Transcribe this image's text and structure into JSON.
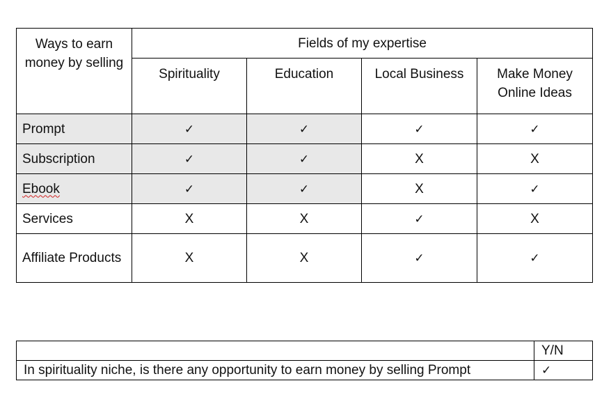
{
  "main_table": {
    "corner_label": "Ways to earn money by selling",
    "group_header": "Fields of my expertise",
    "columns": [
      "Spirituality",
      "Education",
      "Local Business",
      "Make Money Online Ideas"
    ],
    "rows": [
      {
        "label": "Prompt",
        "values": [
          "✓",
          "✓",
          "✓",
          "✓"
        ]
      },
      {
        "label": "Subscription",
        "values": [
          "✓",
          "✓",
          "X",
          "X"
        ]
      },
      {
        "label": "Ebook",
        "values": [
          "✓",
          "✓",
          "X",
          "✓"
        ]
      },
      {
        "label": "Services",
        "values": [
          "X",
          "X",
          "✓",
          "X"
        ]
      },
      {
        "label": "Affiliate Products",
        "values": [
          "X",
          "X",
          "✓",
          "✓"
        ]
      }
    ]
  },
  "question_table": {
    "header_blank": "",
    "header_answer": "Y/N",
    "question": "In spirituality niche, is there any opportunity to earn money by selling Prompt",
    "answer": "✓"
  }
}
